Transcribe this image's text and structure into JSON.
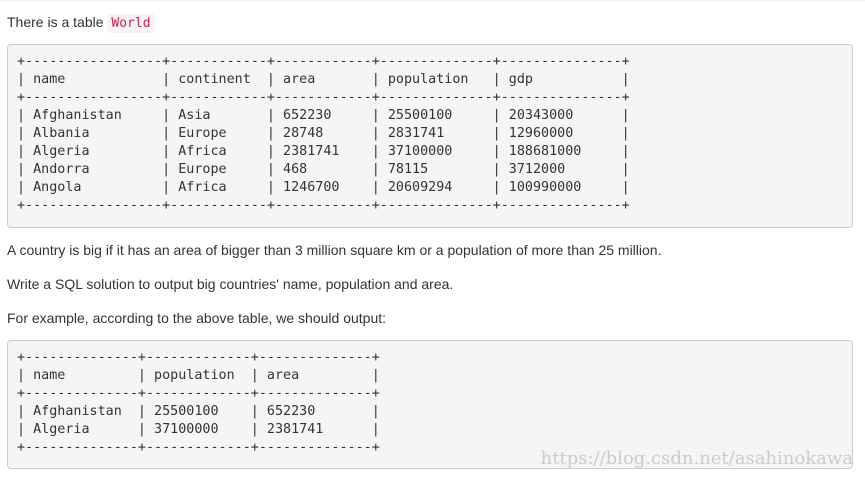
{
  "intro": {
    "prefix": "There is a table ",
    "table_name": "World"
  },
  "world_table": {
    "lines": [
      "+-----------------+------------+------------+--------------+---------------+",
      "| name            | continent  | area       | population   | gdp           |",
      "+-----------------+------------+------------+--------------+---------------+",
      "| Afghanistan     | Asia       | 652230     | 25500100     | 20343000      |",
      "| Albania         | Europe     | 28748      | 2831741      | 12960000      |",
      "| Algeria         | Africa     | 2381741    | 37100000     | 188681000     |",
      "| Andorra         | Europe     | 468        | 78115        | 3712000       |",
      "| Angola          | Africa     | 1246700    | 20609294     | 100990000     |",
      "+-----------------+------------+------------+--------------+---------------+"
    ]
  },
  "description": "A country is big if it has an area of bigger than 3 million square km or a population of more than 25 million.",
  "task": "Write a SQL solution to output big countries' name, population and area.",
  "example_intro": "For example, according to the above table, we should output:",
  "output_table": {
    "lines": [
      "+--------------+-------------+--------------+",
      "| name         | population  | area         |",
      "+--------------+-------------+--------------+",
      "| Afghanistan  | 25500100    | 652230       |",
      "| Algeria      | 37100000    | 2381741      |",
      "+--------------+-------------+--------------+"
    ]
  },
  "watermark": "https://blog.csdn.net/asahinokawa"
}
